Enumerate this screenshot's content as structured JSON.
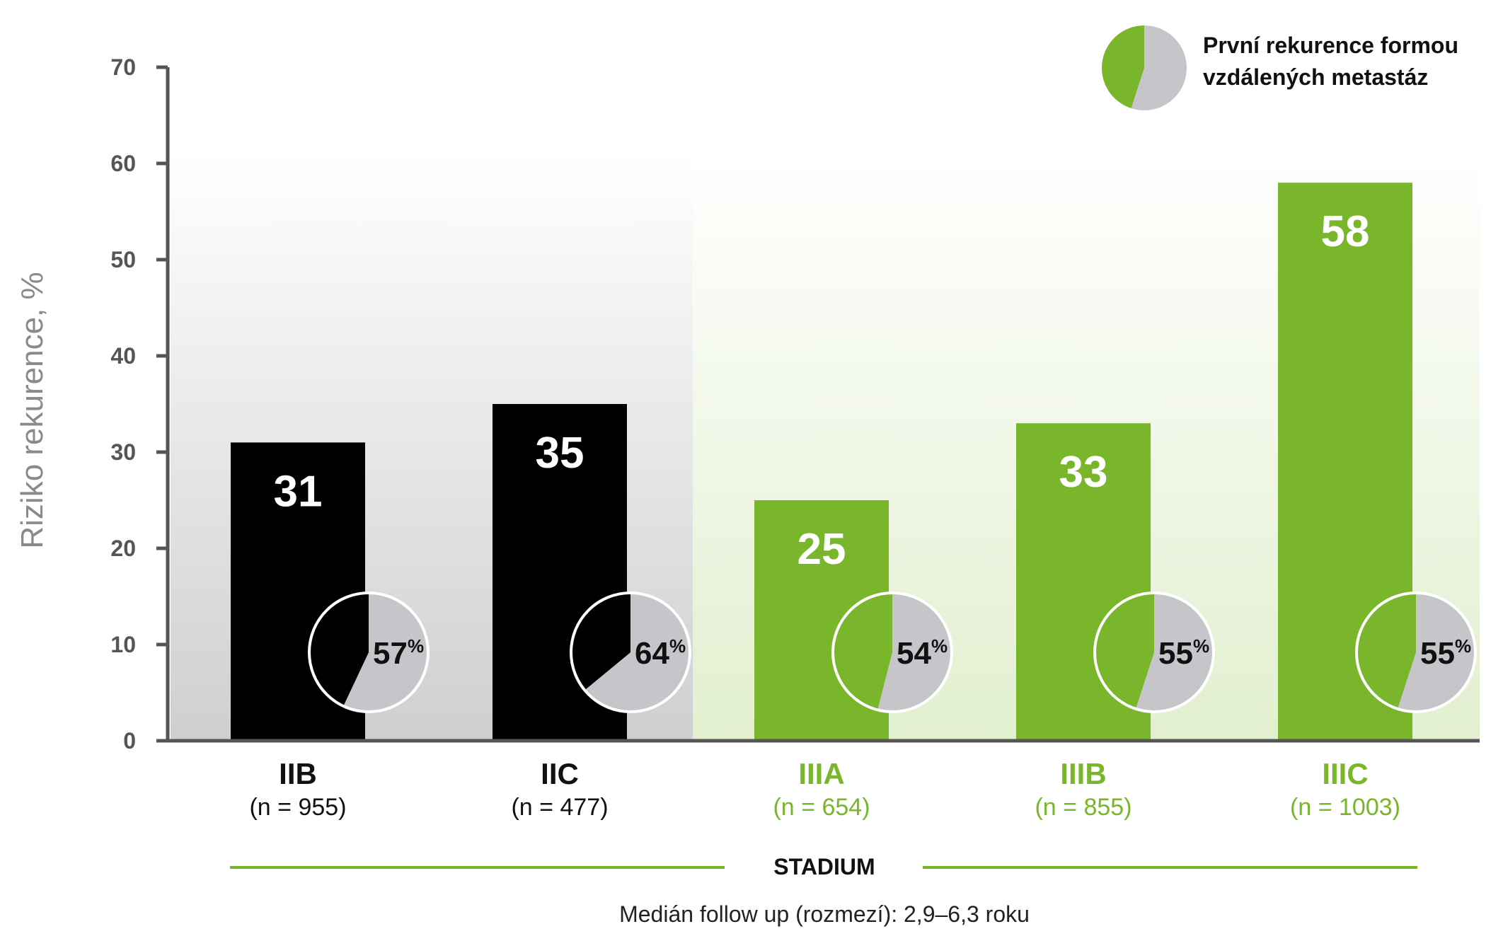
{
  "chart_data": {
    "type": "bar",
    "ylabel": "Riziko rekurence, %",
    "xlabel": "STADIUM",
    "ylim": [
      0,
      70
    ],
    "yticks": [
      0,
      10,
      20,
      30,
      40,
      50,
      60,
      70
    ],
    "categories": [
      "IIB",
      "IIC",
      "IIIA",
      "IIIB",
      "IIIC"
    ],
    "n_labels": [
      "(n = 955)",
      "(n = 477)",
      "(n = 654)",
      "(n = 855)",
      "(n = 1003)"
    ],
    "values": [
      31,
      35,
      25,
      33,
      58
    ],
    "bar_labels": [
      "31",
      "35",
      "25",
      "33",
      "58"
    ],
    "pie_percent": [
      57,
      64,
      54,
      55,
      55
    ],
    "pie_labels": [
      "57",
      "64",
      "54",
      "55",
      "55"
    ],
    "pie_unit": "%",
    "legend": {
      "line1": "První rekurence formou",
      "line2": "vzdálených metastáz",
      "position": "top-right"
    },
    "note": "Medián follow up (rozmezí): 2,9–6,3 roku",
    "colors": {
      "stage_ii": "#000000",
      "stage_iii": "#7ab62b",
      "pie_gray": "#c6c6ca",
      "axis": "#555555",
      "stage_iii_text": "#7ab62b"
    }
  }
}
